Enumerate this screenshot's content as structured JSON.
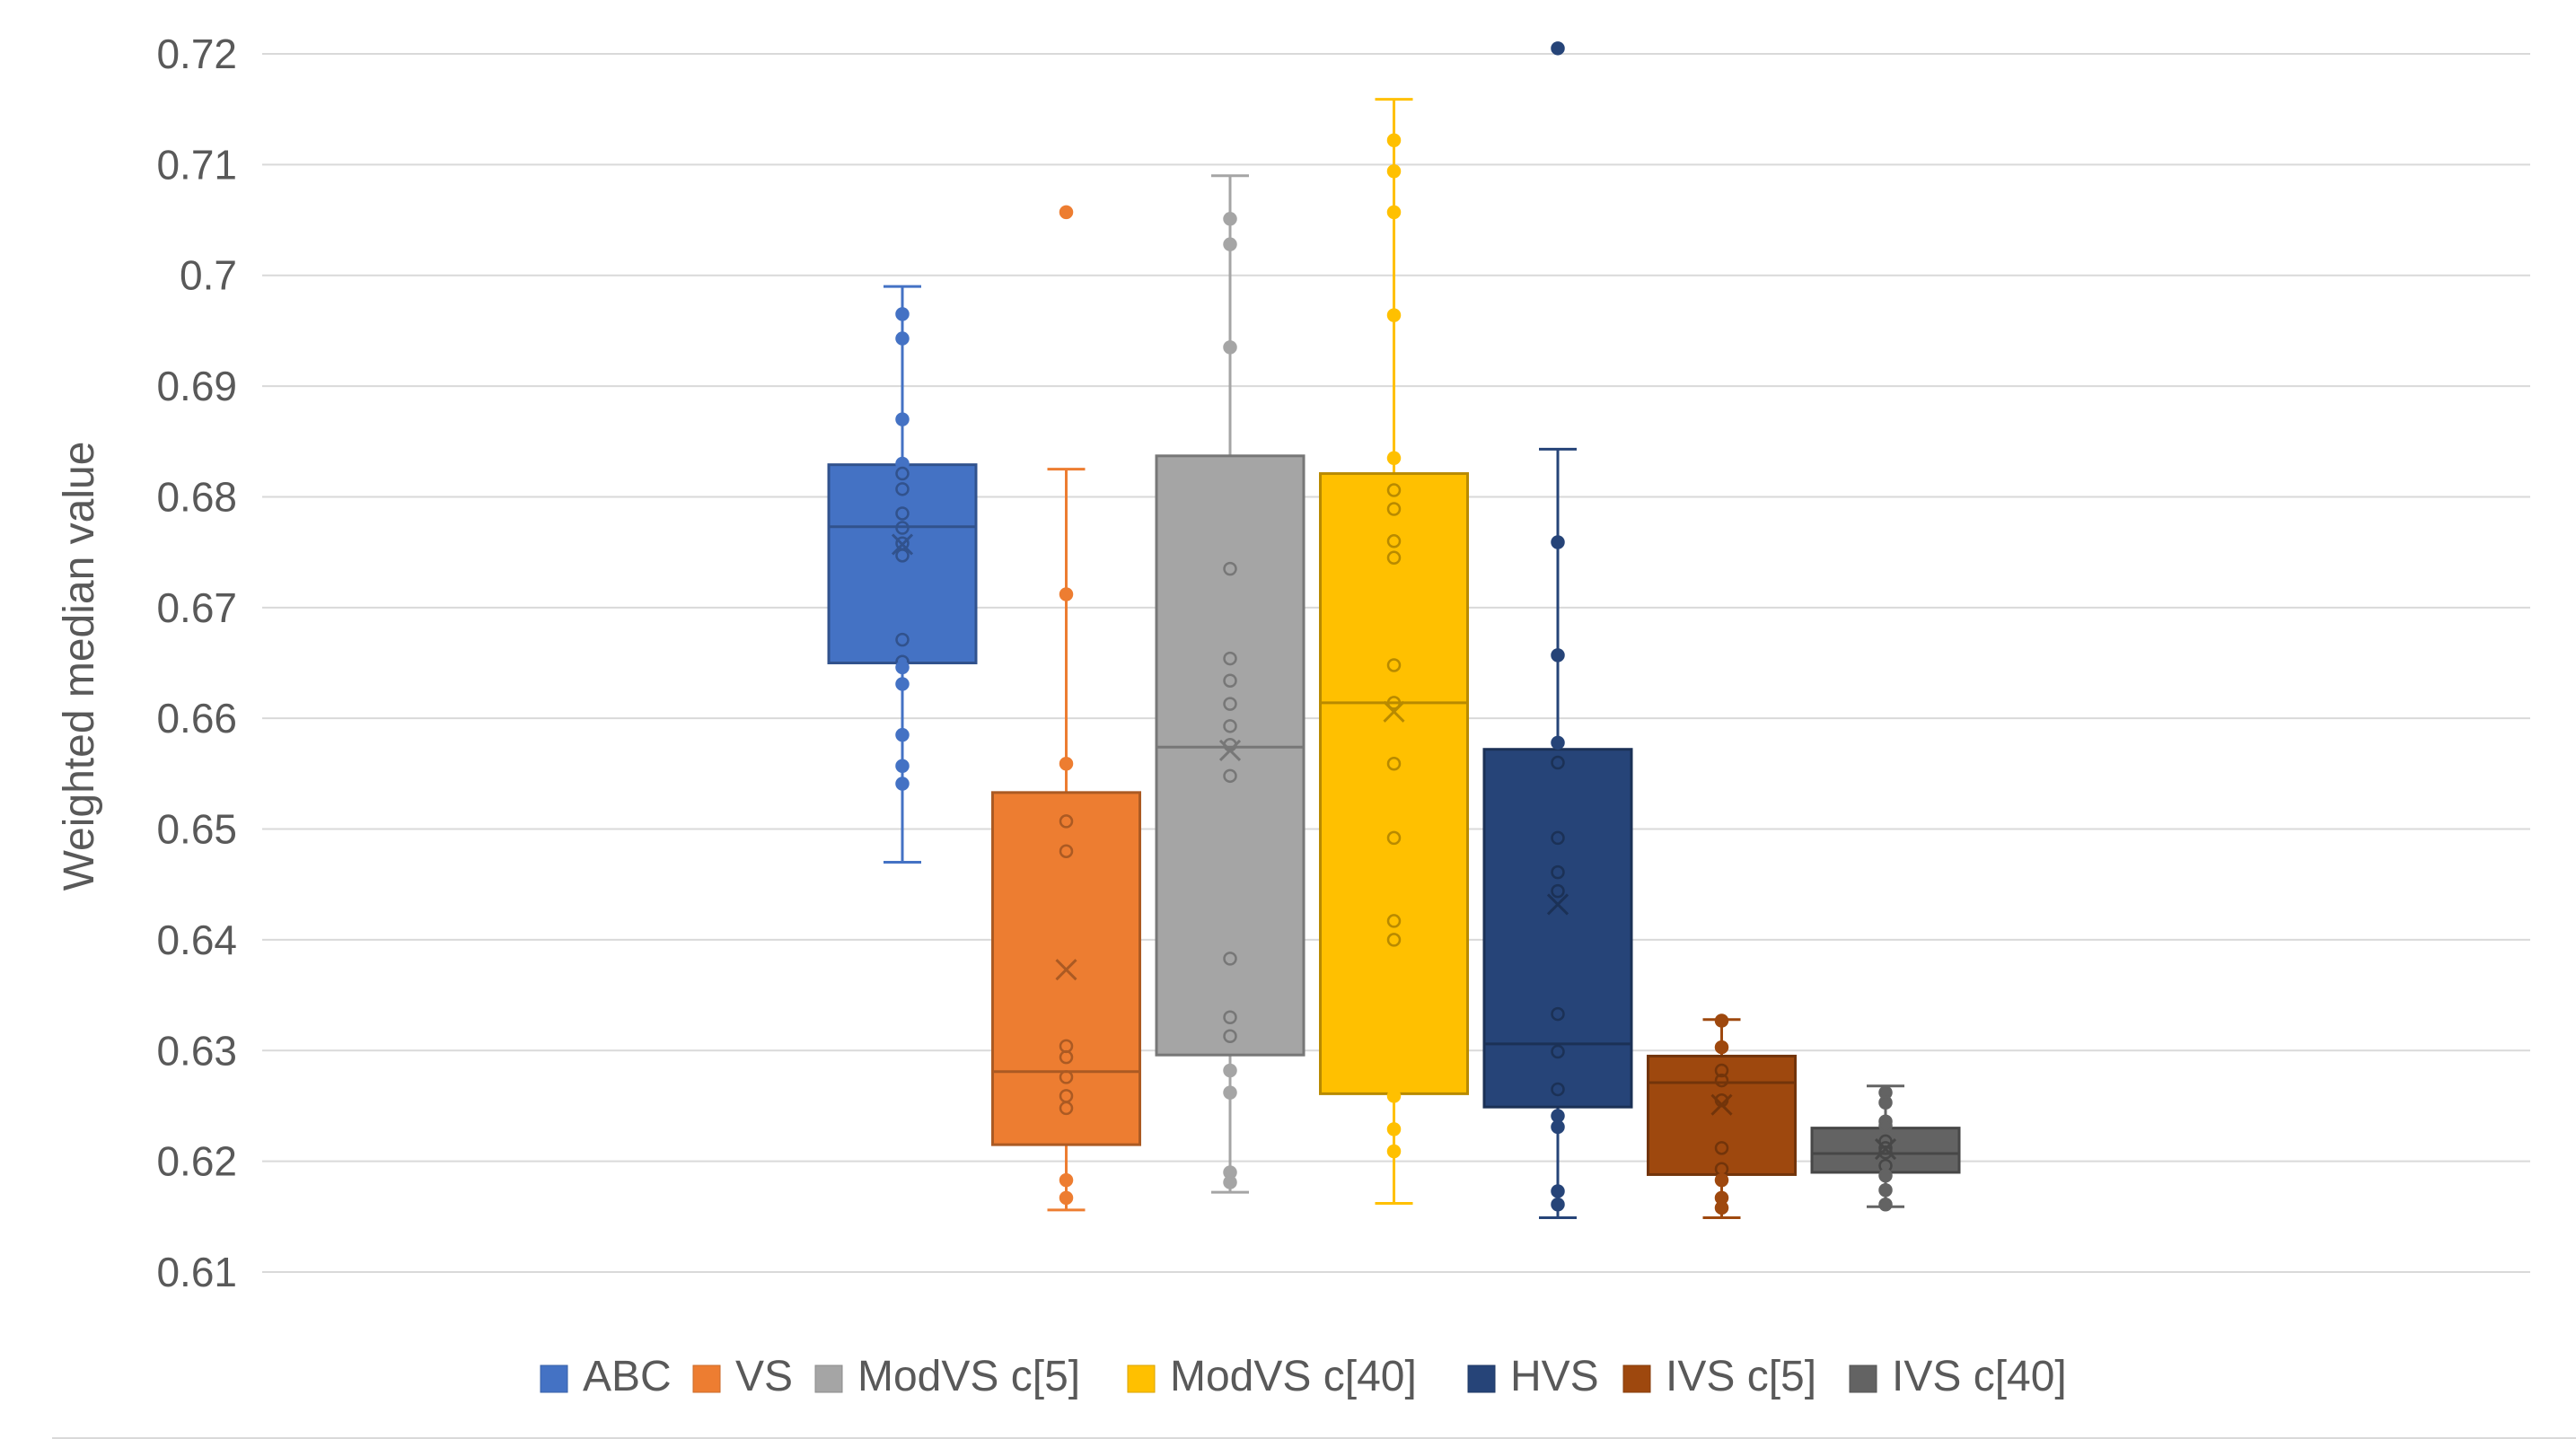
{
  "chart_data": {
    "type": "box",
    "title": "",
    "xlabel": "",
    "ylabel": "Weighted median value",
    "ylim": [
      0.61,
      0.72
    ],
    "yticks": [
      "0.61",
      "0.62",
      "0.63",
      "0.64",
      "0.65",
      "0.66",
      "0.67",
      "0.68",
      "0.69",
      "0.7",
      "0.71",
      "0.72"
    ],
    "grid": true,
    "legend_position": "bottom",
    "series": [
      {
        "name": "ABC",
        "color": "#4472C4",
        "whisker_low": 0.647,
        "q1": 0.665,
        "median": 0.6773,
        "q3": 0.6829,
        "whisker_high": 0.699,
        "mean": 0.6757,
        "points": [
          0.6965,
          0.6943,
          0.687,
          0.683,
          0.6821,
          0.6807,
          0.6785,
          0.6772,
          0.6758,
          0.6747,
          0.6671,
          0.6651,
          0.6646,
          0.6631,
          0.6585,
          0.6557,
          0.6541
        ]
      },
      {
        "name": "VS",
        "color": "#ED7D31",
        "whisker_low": 0.6156,
        "q1": 0.6215,
        "median": 0.6281,
        "q3": 0.6533,
        "whisker_high": 0.6825,
        "mean": 0.6373,
        "points": [
          0.7057,
          0.6712,
          0.6559,
          0.6507,
          0.648,
          0.6304,
          0.6294,
          0.6276,
          0.6259,
          0.6248,
          0.6183,
          0.6167
        ]
      },
      {
        "name": "ModVS c[5]",
        "color": "#A5A5A5",
        "whisker_low": 0.6172,
        "q1": 0.6296,
        "median": 0.6574,
        "q3": 0.6837,
        "whisker_high": 0.709,
        "mean": 0.6571,
        "points": [
          0.7051,
          0.7028,
          0.6935,
          0.6735,
          0.6654,
          0.6634,
          0.6613,
          0.6593,
          0.6576,
          0.6548,
          0.6383,
          0.633,
          0.6313,
          0.6282,
          0.6262,
          0.619,
          0.6181
        ]
      },
      {
        "name": "ModVS c[40]",
        "color": "#FFC000",
        "whisker_low": 0.6162,
        "q1": 0.6261,
        "median": 0.6614,
        "q3": 0.6821,
        "whisker_high": 0.7159,
        "mean": 0.6606,
        "points": [
          0.7122,
          0.7094,
          0.7057,
          0.6964,
          0.6835,
          0.6806,
          0.6789,
          0.676,
          0.6745,
          0.6648,
          0.6614,
          0.6559,
          0.6492,
          0.6417,
          0.64,
          0.6259,
          0.6229,
          0.6209
        ]
      },
      {
        "name": "HVS",
        "color": "#264478",
        "whisker_low": 0.6149,
        "q1": 0.6249,
        "median": 0.6306,
        "q3": 0.6572,
        "whisker_high": 0.6843,
        "mean": 0.6432,
        "points": [
          0.7205,
          0.6759,
          0.6657,
          0.6578,
          0.656,
          0.6492,
          0.6461,
          0.6444,
          0.6333,
          0.6299,
          0.6265,
          0.6241,
          0.6231,
          0.6173,
          0.6161
        ]
      },
      {
        "name": "IVS c[5]",
        "color": "#9E480E",
        "whisker_low": 0.6149,
        "q1": 0.6188,
        "median": 0.6271,
        "q3": 0.6295,
        "whisker_high": 0.6328,
        "mean": 0.6251,
        "points": [
          0.6327,
          0.6303,
          0.6282,
          0.6273,
          0.6255,
          0.6212,
          0.6193,
          0.6183,
          0.6167,
          0.6158
        ]
      },
      {
        "name": "IVS c[40]",
        "color": "#636363",
        "whisker_low": 0.6159,
        "q1": 0.619,
        "median": 0.6207,
        "q3": 0.623,
        "whisker_high": 0.6268,
        "mean": 0.6211,
        "points": [
          0.6262,
          0.6253,
          0.6236,
          0.6232,
          0.6218,
          0.6212,
          0.6208,
          0.6196,
          0.6187,
          0.6174,
          0.6161
        ]
      }
    ]
  }
}
